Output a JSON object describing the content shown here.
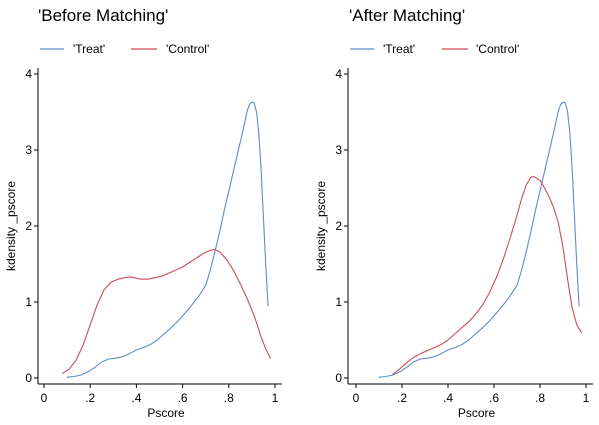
{
  "chart_data": [
    {
      "type": "line",
      "title": "'Before Matching'",
      "xlabel": "Pscore",
      "ylabel": "kdensity _pscore",
      "xlim": [
        0,
        1
      ],
      "ylim": [
        0,
        4
      ],
      "xticks": [
        0,
        0.2,
        0.4,
        0.6,
        0.8,
        1
      ],
      "xtick_labels": [
        "0",
        ".2",
        ".4",
        ".6",
        ".8",
        "1"
      ],
      "yticks": [
        0,
        1,
        2,
        3,
        4
      ],
      "ytick_labels": [
        "0",
        "1",
        "2",
        "3",
        "4"
      ],
      "grid": false,
      "legend_position": "top",
      "series": [
        {
          "name": "'Treat'",
          "color": "#5b8dc9",
          "x": [
            0.1,
            0.13,
            0.16,
            0.19,
            0.22,
            0.25,
            0.28,
            0.31,
            0.34,
            0.37,
            0.4,
            0.43,
            0.46,
            0.49,
            0.52,
            0.55,
            0.58,
            0.61,
            0.64,
            0.67,
            0.7,
            0.72,
            0.74,
            0.76,
            0.78,
            0.8,
            0.82,
            0.84,
            0.86,
            0.87,
            0.88,
            0.89,
            0.9,
            0.91,
            0.92,
            0.93,
            0.94,
            0.95,
            0.96,
            0.97
          ],
          "y": [
            0.01,
            0.02,
            0.04,
            0.08,
            0.14,
            0.21,
            0.25,
            0.26,
            0.28,
            0.32,
            0.37,
            0.4,
            0.44,
            0.5,
            0.58,
            0.66,
            0.75,
            0.85,
            0.96,
            1.08,
            1.22,
            1.42,
            1.66,
            1.92,
            2.2,
            2.46,
            2.72,
            2.98,
            3.24,
            3.38,
            3.52,
            3.6,
            3.63,
            3.62,
            3.5,
            3.22,
            2.74,
            2.12,
            1.48,
            0.95
          ]
        },
        {
          "name": "'Control'",
          "color": "#cc4b58",
          "x": [
            0.08,
            0.11,
            0.14,
            0.17,
            0.2,
            0.23,
            0.26,
            0.29,
            0.32,
            0.35,
            0.37,
            0.39,
            0.42,
            0.45,
            0.48,
            0.51,
            0.54,
            0.57,
            0.6,
            0.63,
            0.66,
            0.69,
            0.72,
            0.74,
            0.76,
            0.79,
            0.82,
            0.85,
            0.88,
            0.91,
            0.94,
            0.96,
            0.98
          ],
          "y": [
            0.06,
            0.12,
            0.24,
            0.44,
            0.7,
            0.96,
            1.16,
            1.26,
            1.3,
            1.32,
            1.33,
            1.32,
            1.3,
            1.3,
            1.32,
            1.34,
            1.38,
            1.42,
            1.46,
            1.52,
            1.58,
            1.64,
            1.68,
            1.69,
            1.66,
            1.56,
            1.42,
            1.24,
            1.04,
            0.82,
            0.54,
            0.38,
            0.26
          ]
        }
      ]
    },
    {
      "type": "line",
      "title": "'After Matching'",
      "xlabel": "Pscore",
      "ylabel": "kdensity _pscore",
      "xlim": [
        0,
        1
      ],
      "ylim": [
        0,
        4
      ],
      "xticks": [
        0,
        0.2,
        0.4,
        0.6,
        0.8,
        1
      ],
      "xtick_labels": [
        "0",
        ".2",
        ".4",
        ".6",
        ".8",
        "1"
      ],
      "yticks": [
        0,
        1,
        2,
        3,
        4
      ],
      "ytick_labels": [
        "0",
        "1",
        "2",
        "3",
        "4"
      ],
      "grid": false,
      "legend_position": "top",
      "series": [
        {
          "name": "'Treat'",
          "color": "#5b8dc9",
          "x": [
            0.1,
            0.13,
            0.16,
            0.19,
            0.22,
            0.25,
            0.28,
            0.31,
            0.34,
            0.37,
            0.4,
            0.43,
            0.46,
            0.49,
            0.52,
            0.55,
            0.58,
            0.61,
            0.64,
            0.67,
            0.7,
            0.72,
            0.74,
            0.76,
            0.78,
            0.8,
            0.82,
            0.84,
            0.86,
            0.87,
            0.88,
            0.89,
            0.9,
            0.91,
            0.92,
            0.93,
            0.94,
            0.95,
            0.96,
            0.97
          ],
          "y": [
            0.01,
            0.02,
            0.04,
            0.08,
            0.14,
            0.21,
            0.25,
            0.26,
            0.28,
            0.32,
            0.37,
            0.4,
            0.44,
            0.5,
            0.58,
            0.66,
            0.75,
            0.85,
            0.96,
            1.08,
            1.22,
            1.42,
            1.66,
            1.92,
            2.2,
            2.46,
            2.72,
            2.98,
            3.24,
            3.38,
            3.52,
            3.6,
            3.63,
            3.62,
            3.5,
            3.22,
            2.74,
            2.12,
            1.48,
            0.95
          ]
        },
        {
          "name": "'Control'",
          "color": "#cc4b58",
          "x": [
            0.16,
            0.19,
            0.22,
            0.25,
            0.28,
            0.31,
            0.34,
            0.37,
            0.4,
            0.43,
            0.46,
            0.49,
            0.52,
            0.55,
            0.58,
            0.61,
            0.64,
            0.67,
            0.7,
            0.72,
            0.74,
            0.76,
            0.77,
            0.78,
            0.8,
            0.82,
            0.84,
            0.86,
            0.88,
            0.9,
            0.92,
            0.94,
            0.96,
            0.98
          ],
          "y": [
            0.05,
            0.12,
            0.2,
            0.27,
            0.32,
            0.36,
            0.4,
            0.44,
            0.5,
            0.58,
            0.66,
            0.74,
            0.84,
            0.96,
            1.12,
            1.32,
            1.56,
            1.84,
            2.14,
            2.36,
            2.54,
            2.64,
            2.65,
            2.64,
            2.6,
            2.5,
            2.38,
            2.24,
            2.04,
            1.72,
            1.3,
            0.92,
            0.7,
            0.6
          ]
        }
      ]
    }
  ]
}
